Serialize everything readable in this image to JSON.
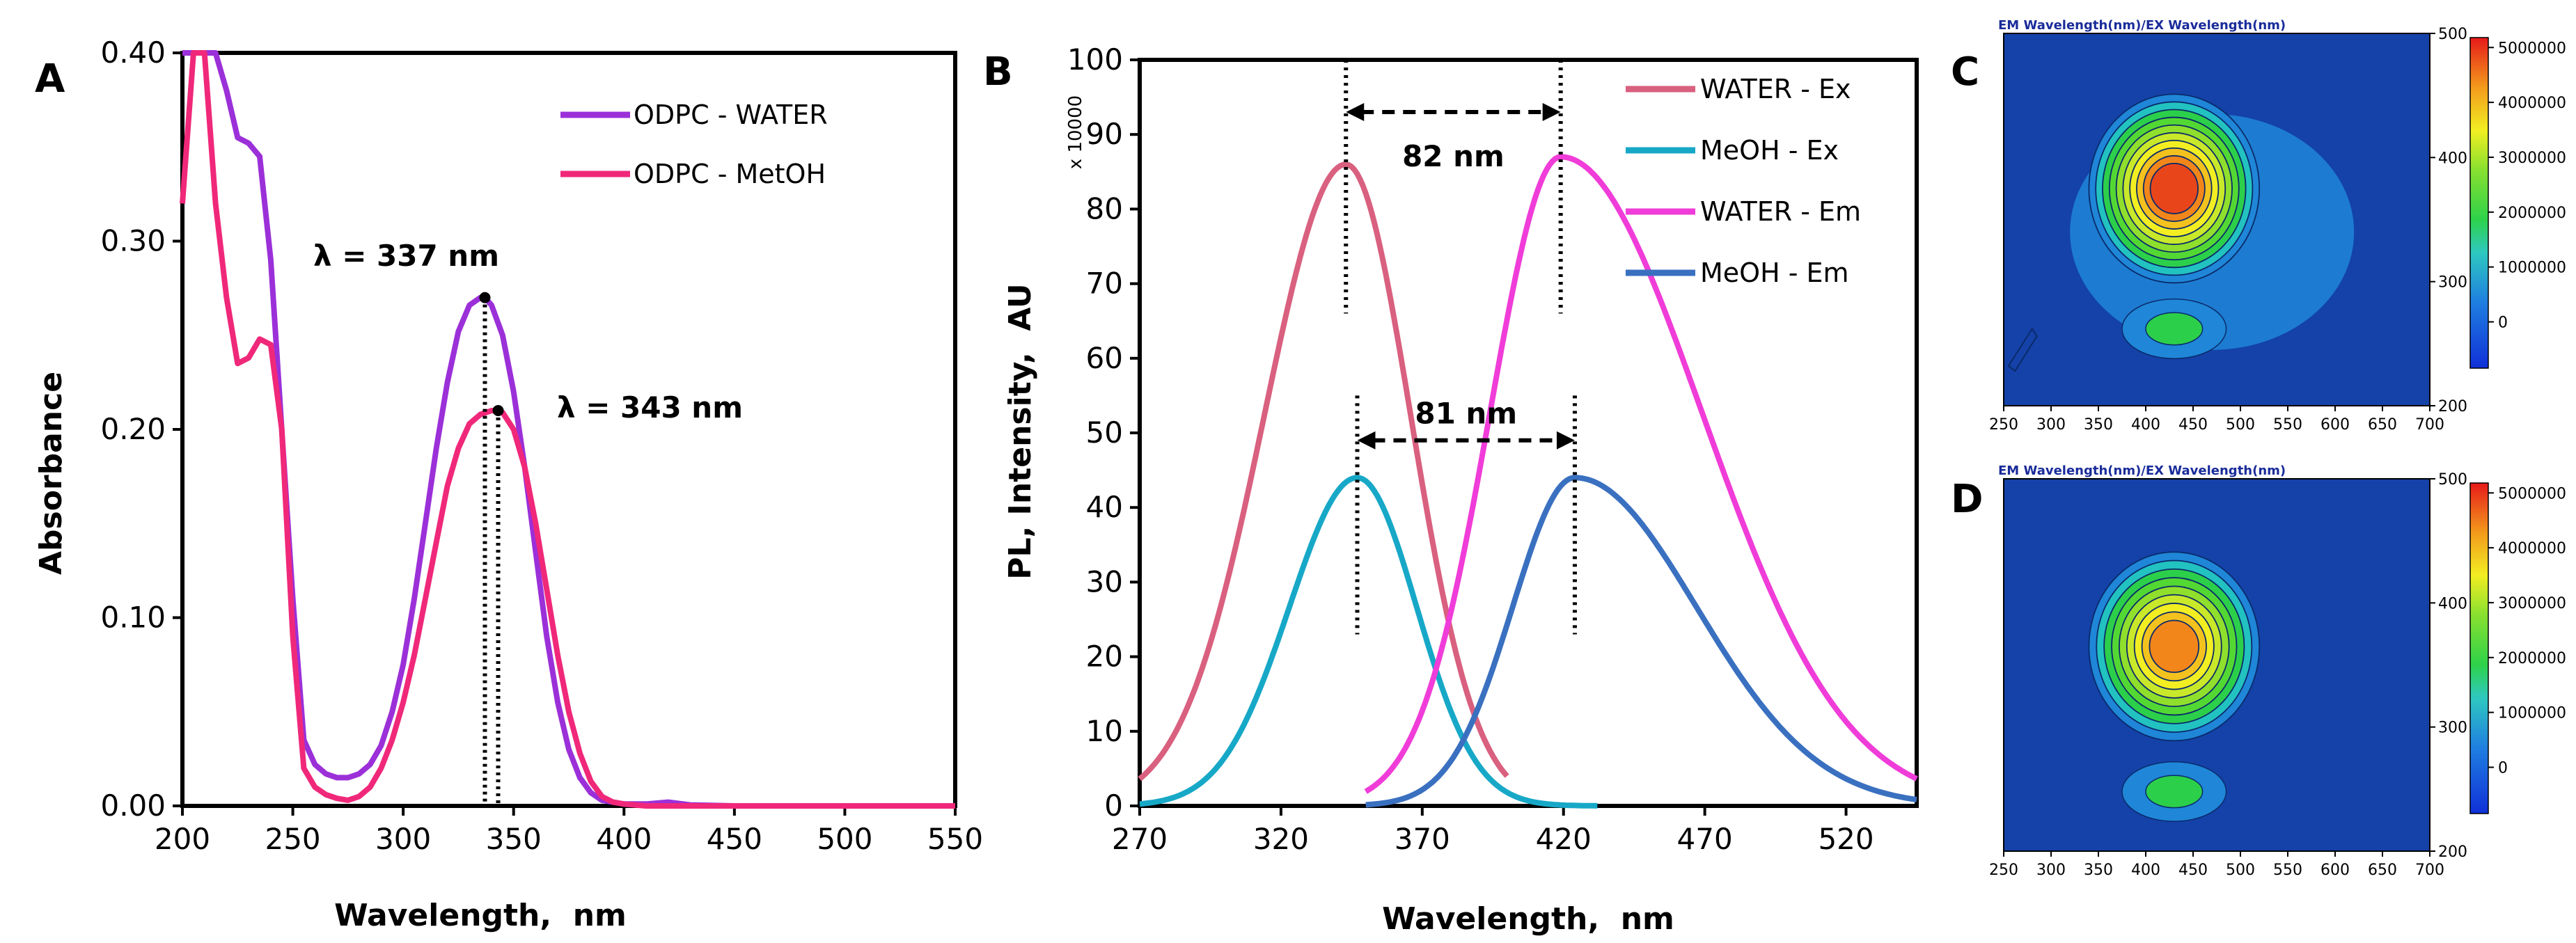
{
  "chart_data": [
    {
      "id": "A",
      "type": "line",
      "panel_label": "A",
      "xlabel": "Wavelength,  nm",
      "ylabel": "Absorbance",
      "xlim": [
        200,
        550
      ],
      "ylim": [
        0,
        0.4
      ],
      "xticks": [
        "200",
        "250",
        "300",
        "350",
        "400",
        "450",
        "500",
        "550"
      ],
      "yticks": [
        "0.00",
        "0.10",
        "0.20",
        "0.30",
        "0.40"
      ],
      "legend_position": "top-right",
      "series": [
        {
          "name": "ODPC - WATER",
          "color": "#9b30d9",
          "x": [
            200,
            205,
            210,
            215,
            220,
            225,
            230,
            235,
            240,
            245,
            250,
            255,
            260,
            265,
            270,
            275,
            280,
            285,
            290,
            295,
            300,
            305,
            310,
            315,
            320,
            325,
            330,
            335,
            337,
            340,
            345,
            350,
            355,
            360,
            365,
            370,
            375,
            380,
            385,
            390,
            395,
            400,
            410,
            420,
            430,
            450,
            500,
            550
          ],
          "y": [
            0.4,
            0.4,
            0.4,
            0.4,
            0.38,
            0.355,
            0.352,
            0.345,
            0.29,
            0.2,
            0.11,
            0.035,
            0.022,
            0.017,
            0.015,
            0.015,
            0.017,
            0.022,
            0.032,
            0.05,
            0.075,
            0.11,
            0.15,
            0.19,
            0.225,
            0.252,
            0.266,
            0.27,
            0.27,
            0.266,
            0.25,
            0.22,
            0.18,
            0.135,
            0.09,
            0.055,
            0.03,
            0.015,
            0.007,
            0.003,
            0.002,
            0.001,
            0.001,
            0.002,
            0.0005,
            0,
            0,
            0
          ]
        },
        {
          "name": "ODPC - MetOH",
          "color": "#f0287a",
          "x": [
            200,
            205,
            210,
            215,
            220,
            225,
            230,
            235,
            240,
            245,
            250,
            255,
            260,
            265,
            270,
            275,
            280,
            285,
            290,
            295,
            300,
            305,
            310,
            315,
            320,
            325,
            330,
            335,
            340,
            343,
            345,
            350,
            355,
            360,
            365,
            370,
            375,
            380,
            385,
            390,
            395,
            400,
            410,
            450,
            500,
            550
          ],
          "y": [
            0.32,
            0.4,
            0.4,
            0.32,
            0.27,
            0.235,
            0.238,
            0.248,
            0.245,
            0.2,
            0.09,
            0.02,
            0.01,
            0.006,
            0.004,
            0.003,
            0.005,
            0.01,
            0.02,
            0.035,
            0.055,
            0.08,
            0.11,
            0.14,
            0.17,
            0.19,
            0.203,
            0.208,
            0.21,
            0.21,
            0.209,
            0.2,
            0.18,
            0.15,
            0.115,
            0.08,
            0.05,
            0.028,
            0.013,
            0.005,
            0.002,
            0.001,
            0,
            0,
            0,
            0
          ]
        }
      ],
      "annotations": [
        {
          "text": "λ = 337 nm",
          "x": 337,
          "y": 0.27
        },
        {
          "text": "λ = 343 nm",
          "x": 343,
          "y": 0.21
        }
      ]
    },
    {
      "id": "B",
      "type": "line",
      "panel_label": "B",
      "xlabel": "Wavelength,  nm",
      "ylabel": "PL, Intensity,  AU",
      "scale_label": "x 10000",
      "xlim": [
        270,
        545
      ],
      "ylim": [
        0,
        100
      ],
      "xticks": [
        "270",
        "320",
        "370",
        "420",
        "470",
        "520"
      ],
      "yticks": [
        "0",
        "10",
        "20",
        "30",
        "40",
        "50",
        "60",
        "70",
        "80",
        "90",
        "100"
      ],
      "legend_position": "top-right",
      "series": [
        {
          "name": "WATER - Ex",
          "color": "#d9607f",
          "peak": 343,
          "height": 86,
          "sigma_left": 29,
          "sigma_right": 23,
          "start": 270,
          "end": 400
        },
        {
          "name": "MeOH - Ex",
          "color": "#17a8c7",
          "peak": 347,
          "height": 44,
          "sigma_left": 24,
          "sigma_right": 21,
          "start": 270,
          "end": 432
        },
        {
          "name": "WATER - Em",
          "color": "#f03cd8",
          "peak": 419,
          "height": 87,
          "sigma_left": 25,
          "sigma_right": 50,
          "start": 350,
          "end": 545
        },
        {
          "name": "MeOH - Em",
          "color": "#3a70c0",
          "peak": 424,
          "height": 44,
          "sigma_left": 22,
          "sigma_right": 43,
          "start": 350,
          "end": 545
        }
      ],
      "annotations": [
        {
          "text": "82 nm",
          "x1": 343,
          "x2": 419,
          "y": 93
        },
        {
          "text": "81 nm",
          "x1": 347,
          "x2": 424,
          "y": 49
        }
      ]
    },
    {
      "id": "C",
      "type": "heatmap",
      "panel_label": "C",
      "title": "EM Wavelength(nm)/EX Wavelength(nm)",
      "xlim": [
        250,
        700
      ],
      "ylim": [
        200,
        500
      ],
      "xticks": [
        "250",
        "300",
        "350",
        "400",
        "450",
        "500",
        "550",
        "600",
        "650",
        "700"
      ],
      "yticks": [
        "200",
        "300",
        "400",
        "500"
      ],
      "colorbar_ticks": [
        "0",
        "1000000",
        "2000000",
        "3000000",
        "4000000",
        "5000000"
      ],
      "peaks": [
        {
          "em": 430,
          "ex": 375,
          "intensity": 5000000
        },
        {
          "em": 430,
          "ex": 262,
          "intensity": 1300000
        }
      ]
    },
    {
      "id": "D",
      "type": "heatmap",
      "panel_label": "D",
      "title": "EM Wavelength(nm)/EX Wavelength(nm)",
      "xlim": [
        250,
        700
      ],
      "ylim": [
        200,
        500
      ],
      "xticks": [
        "250",
        "300",
        "350",
        "400",
        "450",
        "500",
        "550",
        "600",
        "650",
        "700"
      ],
      "yticks": [
        "200",
        "300",
        "400",
        "500"
      ],
      "colorbar_ticks": [
        "0",
        "1000000",
        "2000000",
        "3000000",
        "4000000",
        "5000000"
      ],
      "peaks": [
        {
          "em": 430,
          "ex": 365,
          "intensity": 4700000
        },
        {
          "em": 430,
          "ex": 248,
          "intensity": 1100000
        }
      ]
    }
  ]
}
